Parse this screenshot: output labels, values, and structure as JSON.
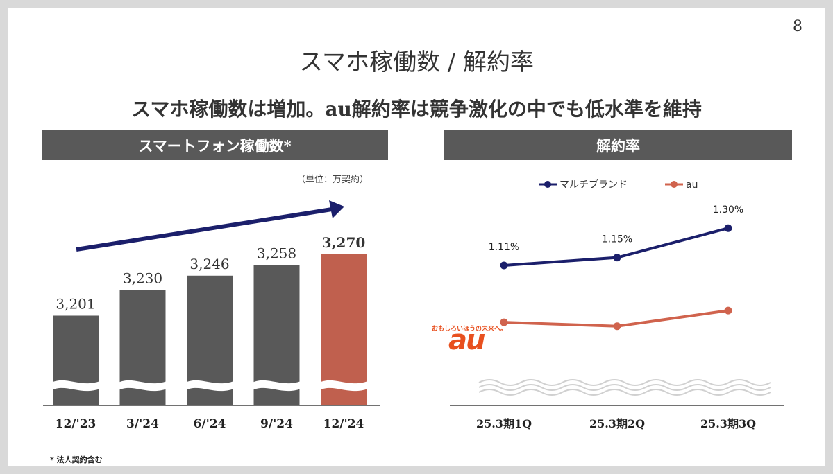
{
  "page_number": "8",
  "title": "スマホ稼働数 / 解約率",
  "subtitle": "スマホ稼働数は増加。au解約率は競争激化の中でも低水準を維持",
  "left_panel": {
    "header": "スマートフォン稼働数*",
    "unit": "（単位：万契約）",
    "footnote": "* 法人契約含む"
  },
  "right_panel": {
    "header": "解約率",
    "logo_tagline": "おもしろいほうの未来へ。",
    "logo_text": "au"
  },
  "colors": {
    "bar_gray": "#595959",
    "bar_highlight": "#c0604e",
    "navy": "#1b1f6b",
    "au_orange": "#d0634d",
    "header_bg": "#595959"
  },
  "chart_data": [
    {
      "type": "bar",
      "title": "スマートフォン稼働数*",
      "categories": [
        "12/'23",
        "3/'24",
        "6/'24",
        "9/'24",
        "12/'24"
      ],
      "values": [
        3201,
        3230,
        3246,
        3258,
        3270
      ],
      "value_labels": [
        "3,201",
        "3,230",
        "3,246",
        "3,258",
        "3,270"
      ],
      "highlight_index": 4,
      "axis_break": true,
      "trend_arrow": true
    },
    {
      "type": "line",
      "title": "解約率",
      "categories": [
        "25.3期1Q",
        "25.3期2Q",
        "25.3期3Q"
      ],
      "series": [
        {
          "name": "マルチブランド",
          "values": [
            1.11,
            1.15,
            1.3
          ],
          "labels": [
            "1.11%",
            "1.15%",
            "1.30%"
          ]
        },
        {
          "name": "au",
          "values": [
            0.82,
            0.8,
            0.88
          ],
          "labels": []
        }
      ],
      "legend_position": "top"
    }
  ]
}
